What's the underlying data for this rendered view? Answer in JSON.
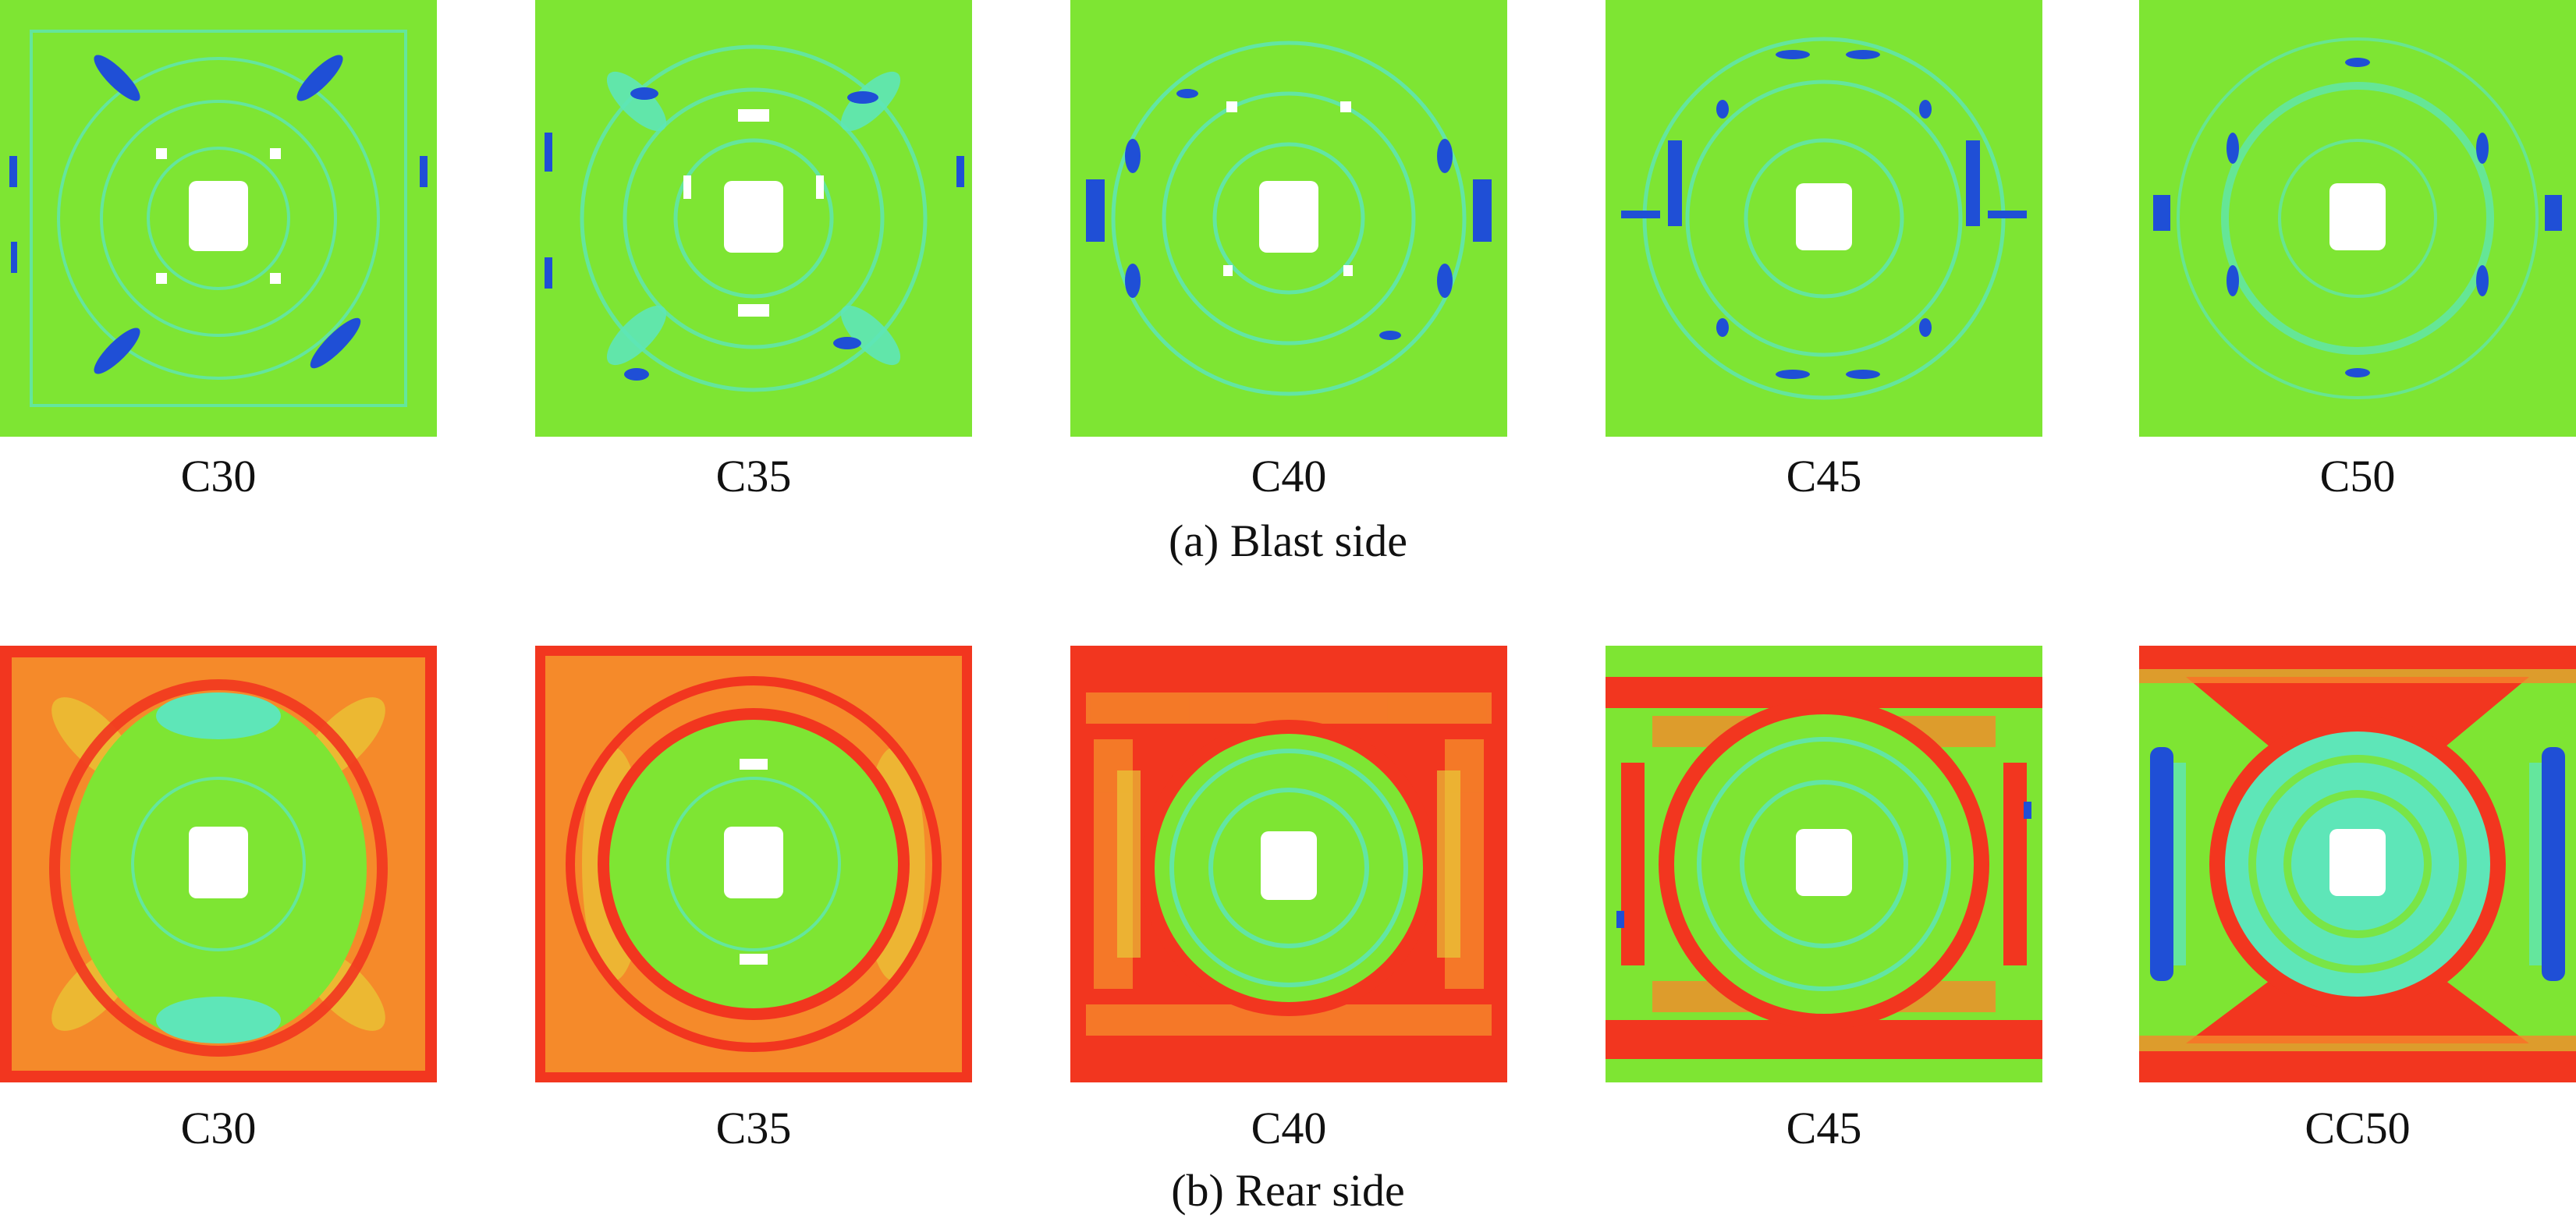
{
  "figure": {
    "blast_side": {
      "caption": "(a) Blast side",
      "panels": [
        {
          "label": "C30"
        },
        {
          "label": "C35"
        },
        {
          "label": "C40"
        },
        {
          "label": "C45"
        },
        {
          "label": "C50"
        }
      ]
    },
    "rear_side": {
      "caption": "(b) Rear side",
      "panels": [
        {
          "label": "C30"
        },
        {
          "label": "C35"
        },
        {
          "label": "C40"
        },
        {
          "label": "C45"
        },
        {
          "label": "CC50"
        }
      ]
    }
  },
  "colors": {
    "green": "#7ee533",
    "cyan": "#5ee6b8",
    "blue": "#1f4fd6",
    "red": "#f2361f",
    "orange": "#f58a2a",
    "yellow": "#e6d83a",
    "white": "#ffffff"
  }
}
